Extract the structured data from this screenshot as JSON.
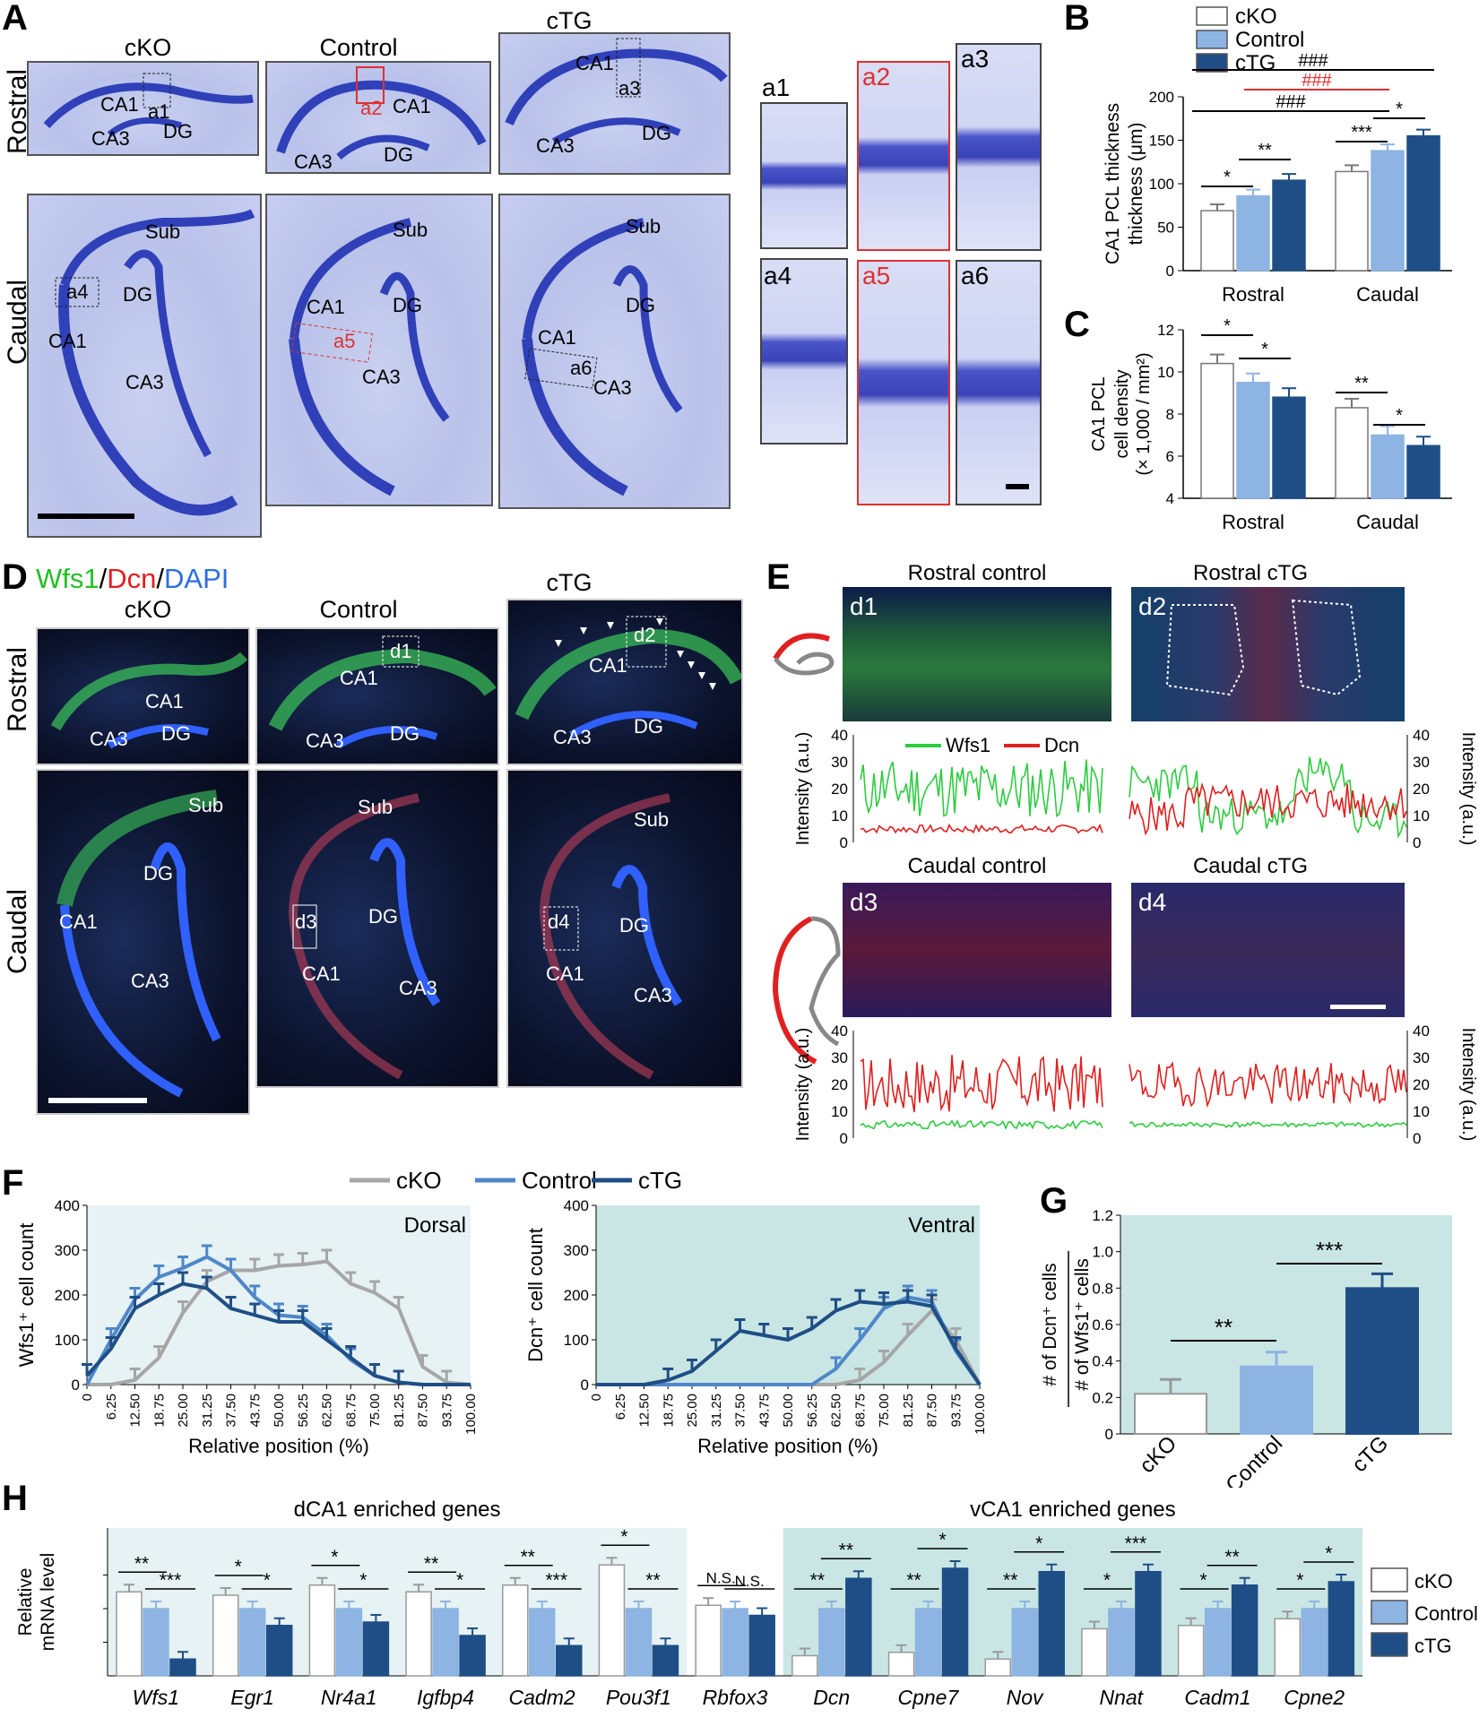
{
  "panelA": {
    "letter": "A",
    "columns": [
      "cKO",
      "Control",
      "cTG"
    ],
    "rows": [
      "Rostral",
      "Caudal"
    ],
    "rostral_labels": [
      [
        "CA1",
        "CA3",
        "DG",
        "a1"
      ],
      [
        "CA1",
        "CA3",
        "DG",
        "a2"
      ],
      [
        "CA1",
        "CA3",
        "DG",
        "a3"
      ]
    ],
    "caudal_labels": [
      [
        "Sub",
        "DG",
        "CA1",
        "CA3",
        "a4"
      ],
      [
        "Sub",
        "DG",
        "CA1",
        "CA3",
        "a5"
      ],
      [
        "Sub",
        "DG",
        "CA1",
        "CA3",
        "a6"
      ]
    ],
    "zoom_labels": [
      "a1",
      "a2",
      "a3",
      "a4",
      "a5",
      "a6"
    ]
  },
  "panelB": {
    "letter": "B",
    "legend": [
      "cKO",
      "Control",
      "cTG"
    ],
    "ylabel": "CA1 PCL thickness (μm)",
    "significance": {
      "top_black": "###",
      "top_red": "###",
      "mid_black": "###",
      "r1": "*",
      "r2": "**",
      "c1": "***",
      "c2": "*"
    }
  },
  "panelC": {
    "letter": "C",
    "ylabel1": "CA1 PCL",
    "ylabel2": "cell density",
    "ylabel3": "(× 1,000 / mm²)",
    "significance": {
      "r1": "*",
      "r2": "*",
      "c1": "**",
      "c2": "*"
    }
  },
  "panelD": {
    "letter": "D",
    "title_wfs1": "Wfs1",
    "title_sep1": "/",
    "title_dcn": "Dcn",
    "title_sep2": "/",
    "title_dapi": "DAPI",
    "columns": [
      "cKO",
      "Control",
      "cTG"
    ],
    "rows": [
      "Rostral",
      "Caudal"
    ],
    "labels": {
      "ca1": "CA1",
      "ca3": "CA3",
      "dg": "DG",
      "sub": "Sub",
      "d1": "d1",
      "d2": "d2",
      "d3": "d3",
      "d4": "d4"
    }
  },
  "panelE": {
    "letter": "E",
    "titles": [
      "Rostral control",
      "Rostral cTG",
      "Caudal control",
      "Caudal cTG"
    ],
    "tags": [
      "d1",
      "d2",
      "d3",
      "d4"
    ],
    "legend": [
      "Wfs1",
      "Dcn"
    ],
    "ylabel": "Intensity (a.u.)",
    "yticks": [
      "0",
      "10",
      "20",
      "30",
      "40"
    ]
  },
  "panelF": {
    "letter": "F",
    "legend": [
      "cKO",
      "Control",
      "cTG"
    ],
    "left_title": "Dorsal",
    "right_title": "Ventral",
    "left_ylabel": "Wfs1⁺ cell count",
    "right_ylabel": "Dcn⁺ cell count",
    "xlabel": "Relative position (%)",
    "xticks": [
      "0",
      "6.25",
      "12.50",
      "18.75",
      "25.00",
      "31.25",
      "37.50",
      "43.75",
      "50.00",
      "56.25",
      "62.50",
      "68.75",
      "75.00",
      "81.25",
      "87.50",
      "93.75",
      "100.00"
    ],
    "yticks": [
      "0",
      "100",
      "200",
      "300",
      "400"
    ]
  },
  "panelG": {
    "letter": "G",
    "ylabel_top": "# of Dcn⁺ cells",
    "ylabel_bottom": "# of Wfs1⁺ cells",
    "significance": [
      "**",
      "***"
    ]
  },
  "panelH": {
    "letter": "H",
    "ylabel1": "Relative",
    "ylabel2": "mRNA level",
    "group_left": "dCA1 enriched genes",
    "group_right": "vCA1 enriched genes",
    "legend": [
      "cKO",
      "Control",
      "cTG"
    ],
    "ns": [
      "N.S.",
      "N.S."
    ]
  },
  "colors": {
    "cKO": "#ffffff",
    "control": "#8db4e2",
    "ctg": "#1f4e86",
    "dorsal_bg": "#e6f2f3",
    "ventral_bg": "#c9e6e4",
    "red": "#e03030",
    "green": "#2ecc40",
    "blue": "#2b6fe0",
    "grey": "#a6a6a6",
    "midblue": "#4f87c9"
  },
  "chart_data": [
    {
      "type": "bar",
      "title": "",
      "ylabel": "CA1 PCL thickness (μm)",
      "ylim": [
        0,
        200
      ],
      "categories": [
        "Rostral",
        "Caudal"
      ],
      "series": [
        {
          "name": "cKO",
          "values": [
            69,
            114
          ]
        },
        {
          "name": "Control",
          "values": [
            86,
            138
          ]
        },
        {
          "name": "cTG",
          "values": [
            104,
            155
          ]
        }
      ],
      "yticks": [
        "0",
        "50",
        "100",
        "150",
        "200"
      ]
    },
    {
      "type": "bar",
      "title": "",
      "ylabel": "CA1 PCL cell density (× 1,000 / mm²)",
      "ylim": [
        4,
        12
      ],
      "categories": [
        "Rostral",
        "Caudal"
      ],
      "series": [
        {
          "name": "cKO",
          "values": [
            10.4,
            8.3
          ]
        },
        {
          "name": "Control",
          "values": [
            9.5,
            7.0
          ]
        },
        {
          "name": "cTG",
          "values": [
            8.8,
            6.5
          ]
        }
      ],
      "yticks": [
        "4",
        "6",
        "8",
        "10",
        "12"
      ]
    },
    {
      "type": "line",
      "title": "Dorsal",
      "xlabel": "Relative position (%)",
      "ylabel": "Wfs1⁺ cell count",
      "ylim": [
        0,
        400
      ],
      "x": [
        0,
        6.25,
        12.5,
        18.75,
        25,
        31.25,
        37.5,
        43.75,
        50,
        56.25,
        62.5,
        68.75,
        75,
        81.25,
        87.5,
        93.75,
        100
      ],
      "series": [
        {
          "name": "cKO",
          "values": [
            0,
            0,
            10,
            60,
            160,
            230,
            255,
            255,
            265,
            268,
            275,
            225,
            205,
            170,
            40,
            5,
            0
          ]
        },
        {
          "name": "Control",
          "values": [
            0,
            100,
            190,
            240,
            260,
            285,
            255,
            195,
            155,
            150,
            110,
            55,
            20,
            5,
            0,
            0,
            0
          ]
        },
        {
          "name": "cTG",
          "values": [
            20,
            80,
            170,
            200,
            225,
            215,
            170,
            155,
            140,
            140,
            100,
            60,
            20,
            5,
            0,
            0,
            0
          ]
        }
      ]
    },
    {
      "type": "line",
      "title": "Ventral",
      "xlabel": "Relative position (%)",
      "ylabel": "Dcn⁺ cell count",
      "ylim": [
        0,
        400
      ],
      "x": [
        0,
        6.25,
        12.5,
        18.75,
        25,
        31.25,
        37.5,
        43.75,
        50,
        56.25,
        62.5,
        68.75,
        75,
        81.25,
        87.5,
        93.75,
        100
      ],
      "series": [
        {
          "name": "cKO",
          "values": [
            0,
            0,
            0,
            0,
            0,
            0,
            0,
            0,
            0,
            0,
            0,
            10,
            50,
            110,
            165,
            100,
            0
          ]
        },
        {
          "name": "Control",
          "values": [
            0,
            0,
            0,
            0,
            0,
            0,
            0,
            0,
            0,
            0,
            35,
            100,
            170,
            195,
            185,
            75,
            0
          ]
        },
        {
          "name": "cTG",
          "values": [
            0,
            0,
            0,
            10,
            30,
            75,
            120,
            110,
            100,
            125,
            165,
            185,
            180,
            185,
            175,
            80,
            0
          ]
        }
      ]
    },
    {
      "type": "bar",
      "title": "",
      "ylabel": "# of Dcn⁺ cells / # of Wfs1⁺ cells",
      "ylim": [
        0,
        1.2
      ],
      "categories": [
        "cKO",
        "Control",
        "cTG"
      ],
      "values": [
        0.22,
        0.37,
        0.8
      ],
      "yticks": [
        "0",
        "0.2",
        "0.4",
        "0.6",
        "0.8",
        "1.0",
        "1.2"
      ]
    },
    {
      "type": "bar",
      "title": "",
      "ylabel": "Relative mRNA level",
      "categories": [
        "Wfs1",
        "Egr1",
        "Nr4a1",
        "Igfbp4",
        "Cadm2",
        "Pou3f1",
        "Rbfox3",
        "Dcn",
        "Cpne7",
        "Nov",
        "Nnat",
        "Cadm1",
        "Cpne2"
      ],
      "series": [
        {
          "name": "cKO",
          "values": [
            1.25,
            1.2,
            1.35,
            1.25,
            1.35,
            1.65,
            1.05,
            0.3,
            0.35,
            0.25,
            0.7,
            0.75,
            0.85
          ]
        },
        {
          "name": "Control",
          "values": [
            1.0,
            1.0,
            1.0,
            1.0,
            1.0,
            1.0,
            1.0,
            1.0,
            1.0,
            1.0,
            1.0,
            1.0,
            1.0
          ]
        },
        {
          "name": "cTG",
          "values": [
            0.25,
            0.75,
            0.8,
            0.6,
            0.45,
            0.45,
            0.9,
            1.45,
            1.6,
            1.55,
            1.55,
            1.35,
            1.4
          ]
        }
      ],
      "significance": [
        [
          "**",
          "***"
        ],
        [
          "*",
          "*"
        ],
        [
          "*",
          "*"
        ],
        [
          "**",
          "*"
        ],
        [
          "**",
          "***"
        ],
        [
          "*",
          "**"
        ],
        [
          "N.S.",
          "N.S."
        ],
        [
          "**",
          "**"
        ],
        [
          "**",
          "*"
        ],
        [
          "**",
          "*"
        ],
        [
          "*",
          "***"
        ],
        [
          "*",
          "**"
        ],
        [
          "*",
          "*"
        ]
      ]
    }
  ]
}
